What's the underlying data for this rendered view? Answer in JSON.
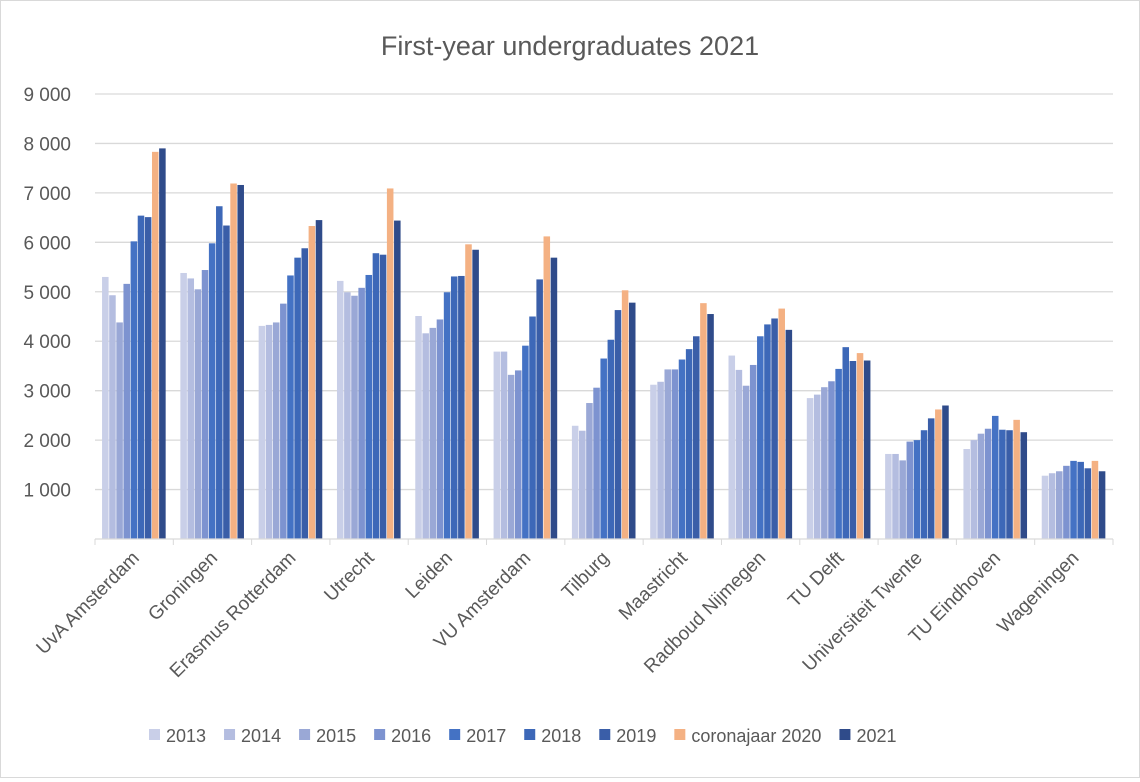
{
  "chart_data": {
    "type": "bar",
    "title": "First-year undergraduates 2021",
    "xlabel": "",
    "ylabel": "",
    "ylim": [
      0,
      9000
    ],
    "yticks": [
      1000,
      2000,
      3000,
      4000,
      5000,
      6000,
      7000,
      8000,
      9000
    ],
    "ytick_labels": [
      "1 000",
      "2 000",
      "3 000",
      "4 000",
      "5 000",
      "6 000",
      "7 000",
      "8 000",
      "9 000"
    ],
    "grid": true,
    "legend_position": "bottom",
    "categories": [
      "UvA Amsterdam",
      "Groningen",
      "Erasmus Rotterdam",
      "Utrecht",
      "Leiden",
      "VU Amsterdam",
      "Tilburg",
      "Maastricht",
      "Radboud Nijmegen",
      "TU Delft",
      "Universiteit Twente",
      "TU Eindhoven",
      "Wageningen"
    ],
    "series": [
      {
        "name": "2013",
        "color": "#c9cfe8",
        "values": [
          5300,
          5380,
          4310,
          5220,
          4510,
          3790,
          2290,
          3120,
          3710,
          2850,
          1720,
          1820,
          1280
        ]
      },
      {
        "name": "2014",
        "color": "#b4bde0",
        "values": [
          4930,
          5270,
          4330,
          4990,
          4160,
          3790,
          2190,
          3180,
          3420,
          2920,
          1720,
          2000,
          1330
        ]
      },
      {
        "name": "2015",
        "color": "#9aa8d6",
        "values": [
          4380,
          5050,
          4380,
          4920,
          4270,
          3320,
          2750,
          3430,
          3100,
          3070,
          1590,
          2130,
          1370
        ]
      },
      {
        "name": "2016",
        "color": "#7d93d0",
        "values": [
          5160,
          5440,
          4760,
          5080,
          4440,
          3410,
          3060,
          3430,
          3520,
          3190,
          1970,
          2230,
          1480
        ]
      },
      {
        "name": "2017",
        "color": "#4472c4",
        "values": [
          6020,
          5980,
          5330,
          5340,
          4990,
          3910,
          3650,
          3630,
          4100,
          3440,
          2000,
          2490,
          1580
        ]
      },
      {
        "name": "2018",
        "color": "#3d68b8",
        "values": [
          6540,
          6730,
          5690,
          5780,
          5310,
          4500,
          4030,
          3840,
          4340,
          3880,
          2200,
          2210,
          1560
        ]
      },
      {
        "name": "2019",
        "color": "#3a5ea8",
        "values": [
          6510,
          6340,
          5880,
          5750,
          5320,
          5250,
          4630,
          4100,
          4460,
          3600,
          2440,
          2200,
          1430
        ]
      },
      {
        "name": "coronajaar 2020",
        "color": "#f4b183",
        "values": [
          7830,
          7190,
          6330,
          7090,
          5960,
          6120,
          5030,
          4770,
          4660,
          3760,
          2620,
          2410,
          1580
        ]
      },
      {
        "name": "2021",
        "color": "#2f4b8a",
        "values": [
          7900,
          7160,
          6450,
          6440,
          5850,
          5690,
          4780,
          4550,
          4230,
          3610,
          2700,
          2160,
          1370
        ]
      }
    ]
  }
}
